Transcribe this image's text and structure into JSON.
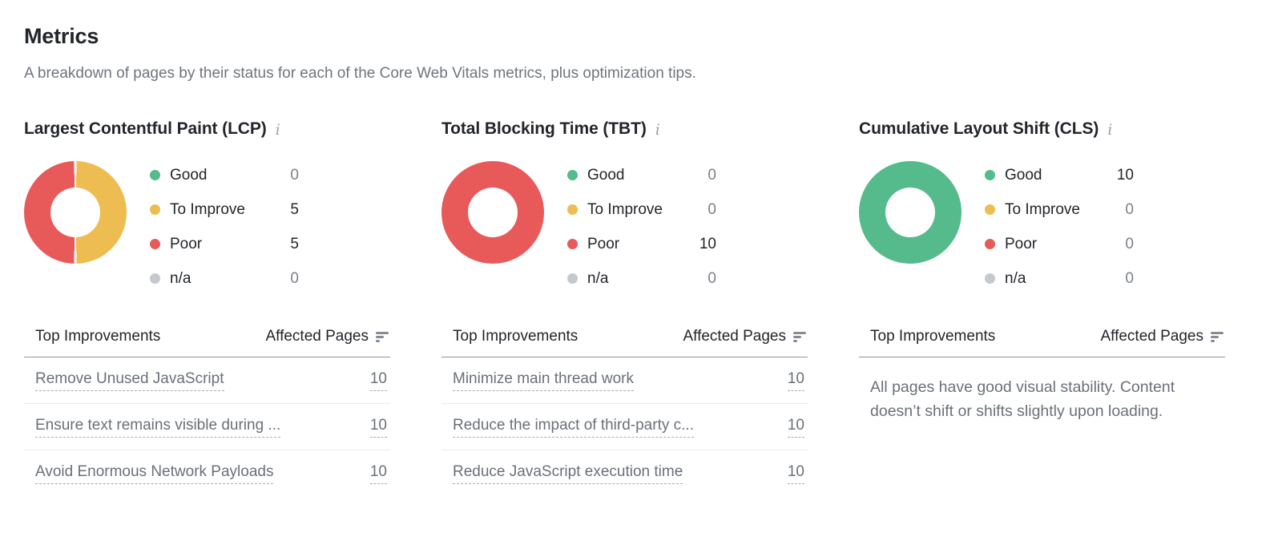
{
  "header": {
    "title": "Metrics",
    "subtitle": "A breakdown of pages by their status for each of the Core Web Vitals metrics, plus optimization tips."
  },
  "colors": {
    "good": "#55ba8c",
    "to_improve": "#eebd52",
    "poor": "#e85a5a",
    "na": "#c5c8cd",
    "text_dark": "#22252a",
    "text_muted": "#6b7078"
  },
  "table_headers": {
    "improvements": "Top Improvements",
    "affected_pages": "Affected Pages"
  },
  "metrics": [
    {
      "id": "lcp",
      "title": "Largest Contentful Paint (LCP)",
      "chart_data": {
        "type": "donut",
        "segments": [
          {
            "label": "Good",
            "value": 0,
            "color": "#55ba8c"
          },
          {
            "label": "To Improve",
            "value": 5,
            "color": "#eebd52"
          },
          {
            "label": "Poor",
            "value": 5,
            "color": "#e85a5a"
          },
          {
            "label": "n/a",
            "value": 0,
            "color": "#c5c8cd"
          }
        ]
      },
      "improvements": [
        {
          "label": "Remove Unused JavaScript",
          "pages": "10"
        },
        {
          "label": "Ensure text remains visible during ...",
          "pages": "10"
        },
        {
          "label": "Avoid Enormous Network Payloads",
          "pages": "10"
        }
      ],
      "empty_message": ""
    },
    {
      "id": "tbt",
      "title": "Total Blocking Time (TBT)",
      "chart_data": {
        "type": "donut",
        "segments": [
          {
            "label": "Good",
            "value": 0,
            "color": "#55ba8c"
          },
          {
            "label": "To Improve",
            "value": 0,
            "color": "#eebd52"
          },
          {
            "label": "Poor",
            "value": 10,
            "color": "#e85a5a"
          },
          {
            "label": "n/a",
            "value": 0,
            "color": "#c5c8cd"
          }
        ]
      },
      "improvements": [
        {
          "label": "Minimize main thread work",
          "pages": "10"
        },
        {
          "label": "Reduce the impact of third-party c...",
          "pages": "10"
        },
        {
          "label": "Reduce JavaScript execution time",
          "pages": "10"
        }
      ],
      "empty_message": ""
    },
    {
      "id": "cls",
      "title": "Cumulative Layout Shift (CLS)",
      "chart_data": {
        "type": "donut",
        "segments": [
          {
            "label": "Good",
            "value": 10,
            "color": "#55ba8c"
          },
          {
            "label": "To Improve",
            "value": 0,
            "color": "#eebd52"
          },
          {
            "label": "Poor",
            "value": 0,
            "color": "#e85a5a"
          },
          {
            "label": "n/a",
            "value": 0,
            "color": "#c5c8cd"
          }
        ]
      },
      "improvements": [],
      "empty_message": "All pages have good visual stability. Content doesn’t shift or shifts slightly upon loading."
    }
  ]
}
